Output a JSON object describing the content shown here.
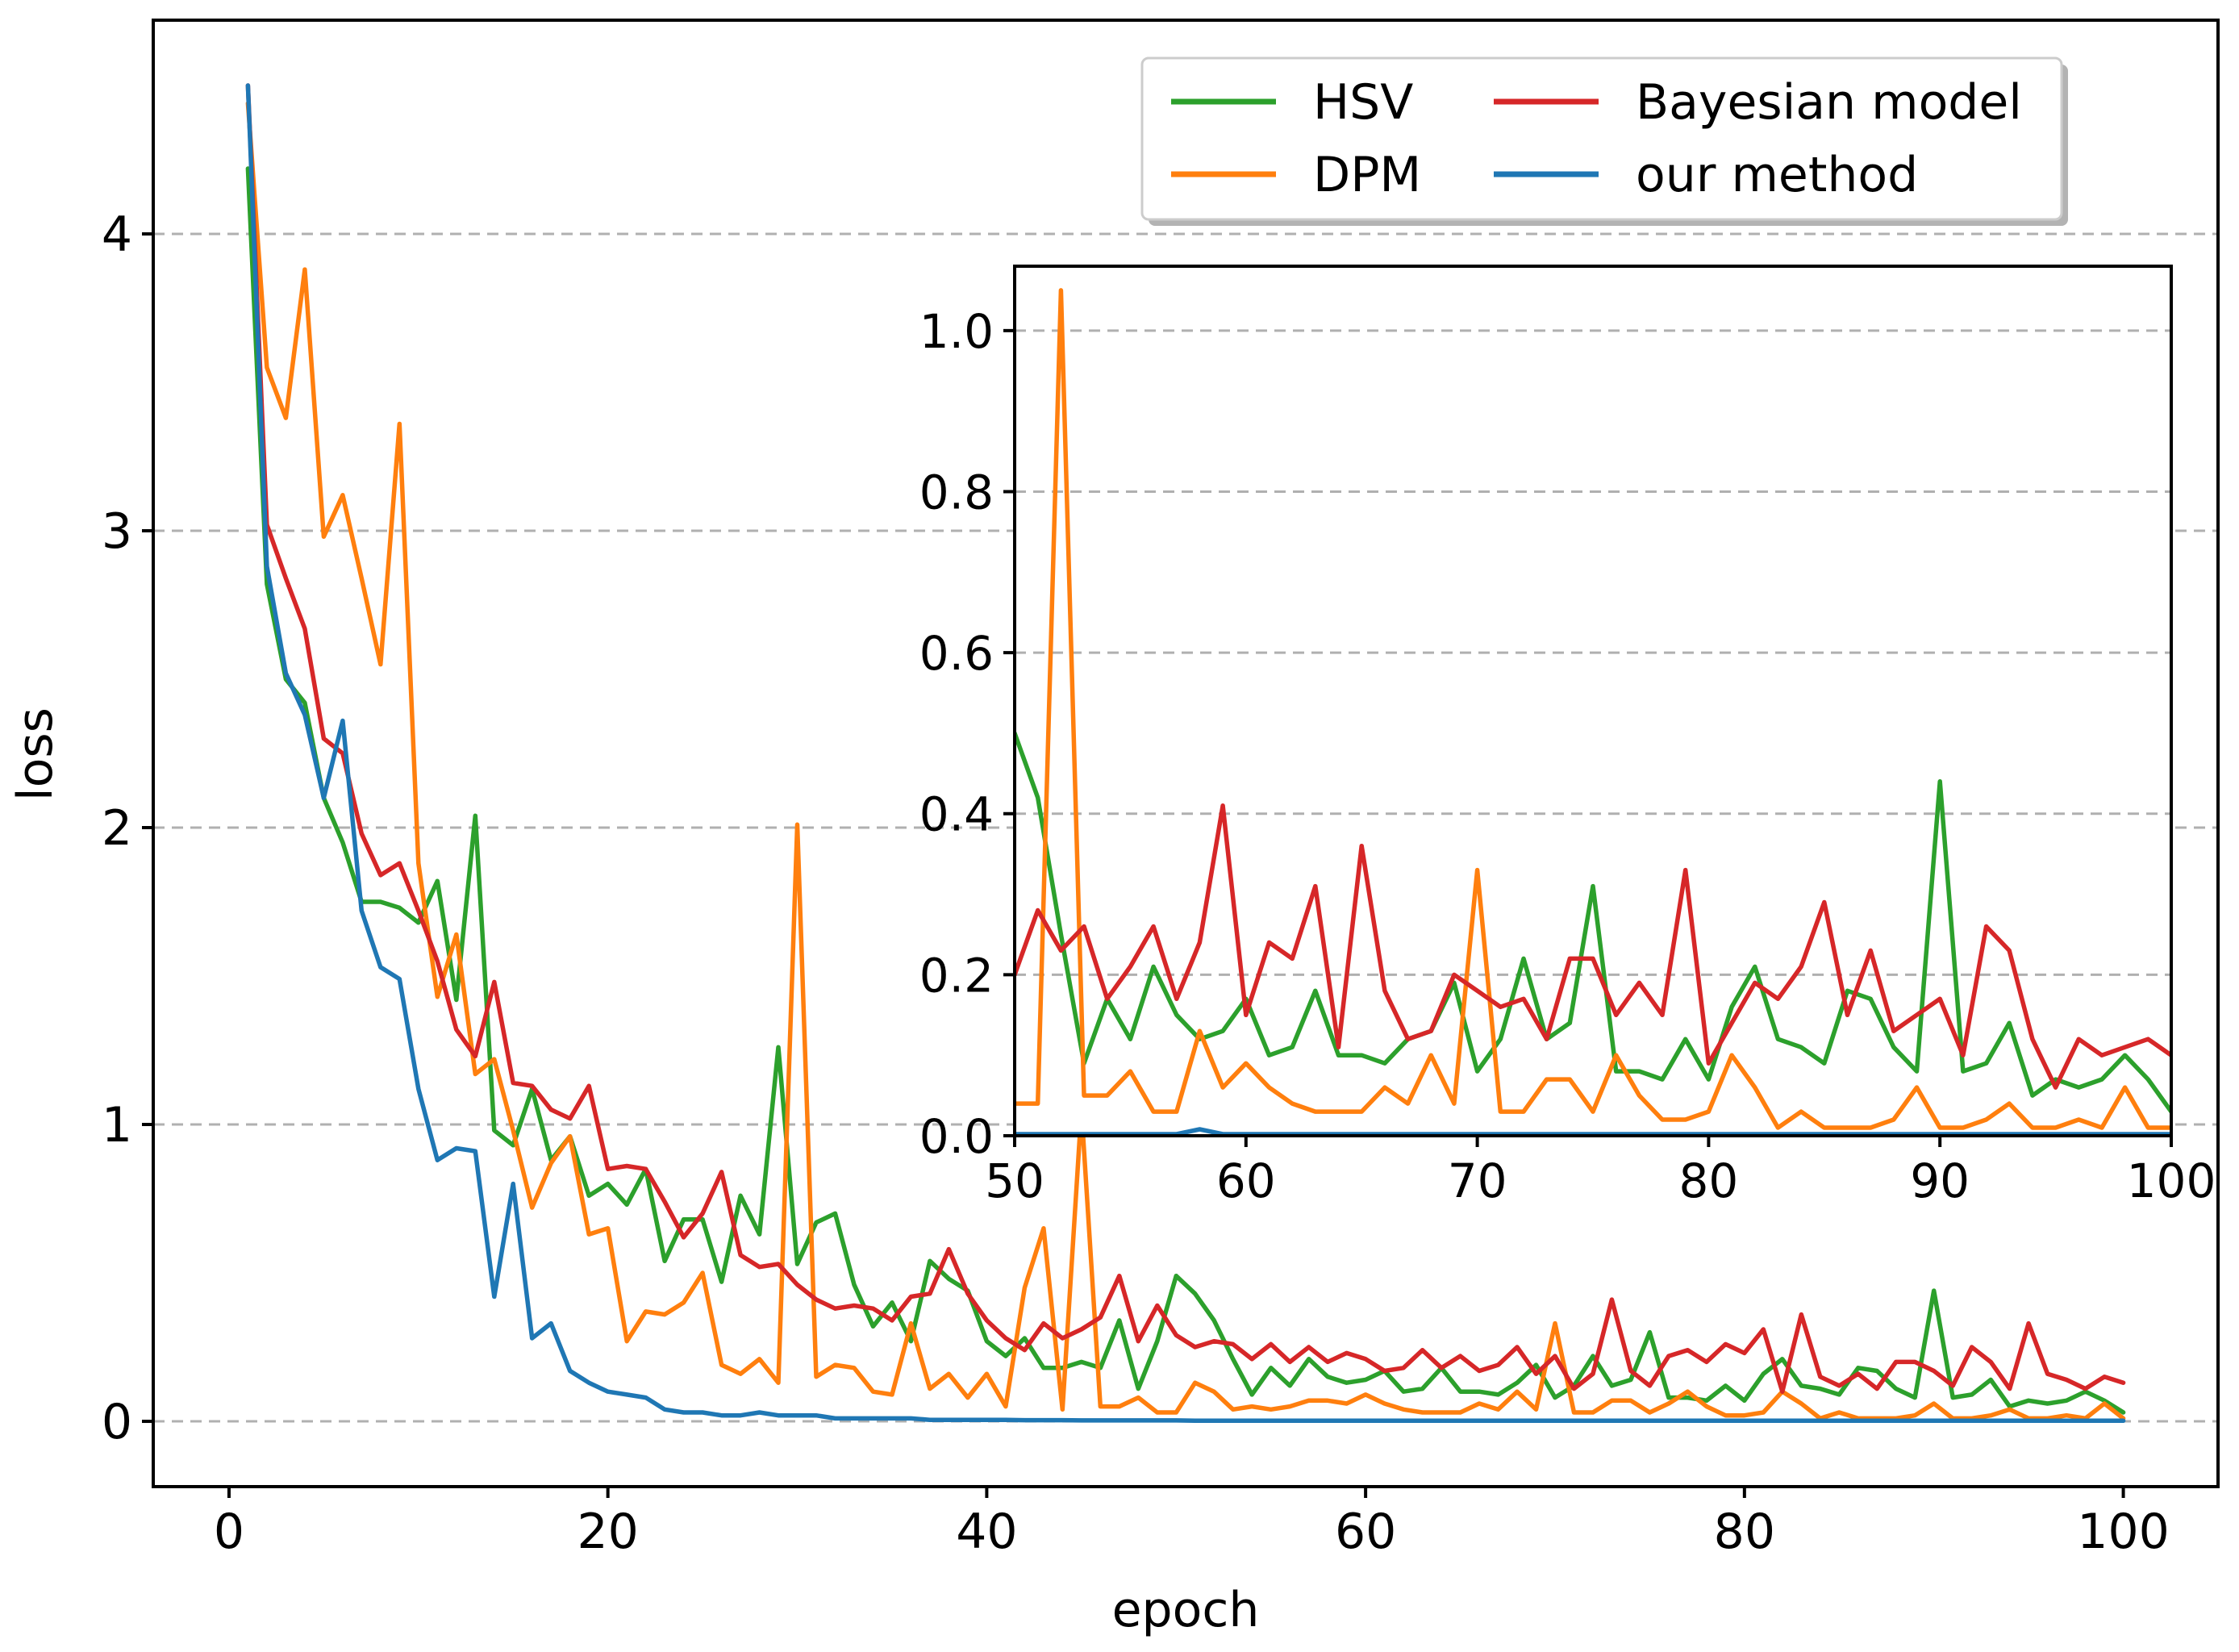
{
  "chart_data": {
    "type": "line",
    "title": "",
    "xlabel": "epoch",
    "ylabel": "loss",
    "xlim": [
      -4,
      105
    ],
    "ylim": [
      -0.22,
      4.72
    ],
    "xticks": [
      0,
      20,
      40,
      60,
      80,
      100
    ],
    "yticks": [
      0,
      1,
      2,
      3,
      4
    ],
    "grid": "horizontal dashed",
    "legend": {
      "placement": "top-right",
      "entries": [
        {
          "name": "HSV",
          "color": "#2ca02c"
        },
        {
          "name": "DPM",
          "color": "#ff7f0e"
        },
        {
          "name": "Bayesian model",
          "color": "#d62728"
        },
        {
          "name": "our method",
          "color": "#1f77b4"
        }
      ]
    },
    "x": [
      1,
      2,
      3,
      4,
      5,
      6,
      7,
      8,
      9,
      10,
      11,
      12,
      13,
      14,
      15,
      16,
      17,
      18,
      19,
      20,
      21,
      22,
      23,
      24,
      25,
      26,
      27,
      28,
      29,
      30,
      31,
      32,
      33,
      34,
      35,
      36,
      37,
      38,
      39,
      40,
      41,
      42,
      43,
      44,
      45,
      46,
      47,
      48,
      49,
      50,
      51,
      52,
      53,
      54,
      55,
      56,
      57,
      58,
      59,
      60,
      61,
      62,
      63,
      64,
      65,
      66,
      67,
      68,
      69,
      70,
      71,
      72,
      73,
      74,
      75,
      76,
      77,
      78,
      79,
      80,
      81,
      82,
      83,
      84,
      85,
      86,
      87,
      88,
      89,
      90,
      91,
      92,
      93,
      94,
      95,
      96,
      97,
      98,
      99,
      100
    ],
    "series": [
      {
        "name": "HSV",
        "color": "#2ca02c",
        "values": [
          4.22,
          2.82,
          2.5,
          2.42,
          2.1,
          1.95,
          1.75,
          1.75,
          1.73,
          1.68,
          1.82,
          1.42,
          2.04,
          0.98,
          0.93,
          1.12,
          0.88,
          0.96,
          0.76,
          0.8,
          0.73,
          0.85,
          0.54,
          0.68,
          0.68,
          0.47,
          0.76,
          0.63,
          1.26,
          0.53,
          0.67,
          0.7,
          0.46,
          0.32,
          0.4,
          0.27,
          0.54,
          0.48,
          0.44,
          0.27,
          0.22,
          0.28,
          0.18,
          0.18,
          0.2,
          0.18,
          0.34,
          0.11,
          0.27,
          0.49,
          0.43,
          0.34,
          0.21,
          0.09,
          0.18,
          0.12,
          0.21,
          0.15,
          0.13,
          0.14,
          0.17,
          0.1,
          0.11,
          0.18,
          0.1,
          0.1,
          0.09,
          0.13,
          0.19,
          0.08,
          0.12,
          0.22,
          0.12,
          0.14,
          0.3,
          0.08,
          0.08,
          0.07,
          0.12,
          0.07,
          0.16,
          0.21,
          0.12,
          0.11,
          0.09,
          0.18,
          0.17,
          0.11,
          0.08,
          0.44,
          0.08,
          0.09,
          0.14,
          0.05,
          0.07,
          0.06,
          0.07,
          0.1,
          0.07,
          0.03
        ]
      },
      {
        "name": "DPM",
        "color": "#ff7f0e",
        "values": [
          4.44,
          3.55,
          3.38,
          3.88,
          2.98,
          3.12,
          2.84,
          2.55,
          3.36,
          1.88,
          1.43,
          1.64,
          1.17,
          1.22,
          0.98,
          0.72,
          0.87,
          0.96,
          0.63,
          0.65,
          0.27,
          0.37,
          0.36,
          0.4,
          0.5,
          0.19,
          0.16,
          0.21,
          0.13,
          2.01,
          0.15,
          0.19,
          0.18,
          0.1,
          0.09,
          0.33,
          0.11,
          0.16,
          0.08,
          0.16,
          0.05,
          0.45,
          0.65,
          0.04,
          1.05,
          0.05,
          0.05,
          0.08,
          0.03,
          0.03,
          0.13,
          0.1,
          0.04,
          0.05,
          0.04,
          0.05,
          0.07,
          0.07,
          0.06,
          0.09,
          0.06,
          0.04,
          0.03,
          0.03,
          0.03,
          0.06,
          0.04,
          0.1,
          0.04,
          0.33,
          0.03,
          0.03,
          0.07,
          0.07,
          0.03,
          0.06,
          0.1,
          0.05,
          0.02,
          0.02,
          0.03,
          0.1,
          0.06,
          0.01,
          0.03,
          0.01,
          0.01,
          0.01,
          0.02,
          0.06,
          0.01,
          0.01,
          0.02,
          0.04,
          0.01,
          0.01,
          0.02,
          0.01,
          0.06,
          0.01
        ]
      },
      {
        "name": "Bayesian model",
        "color": "#d62728",
        "values": [
          4.5,
          3.02,
          2.84,
          2.67,
          2.3,
          2.25,
          1.98,
          1.84,
          1.88,
          1.72,
          1.55,
          1.32,
          1.23,
          1.48,
          1.14,
          1.13,
          1.05,
          1.02,
          1.13,
          0.85,
          0.86,
          0.85,
          0.74,
          0.62,
          0.7,
          0.84,
          0.56,
          0.52,
          0.53,
          0.46,
          0.41,
          0.38,
          0.39,
          0.38,
          0.34,
          0.42,
          0.43,
          0.58,
          0.43,
          0.34,
          0.28,
          0.24,
          0.33,
          0.28,
          0.31,
          0.35,
          0.49,
          0.27,
          0.39,
          0.29,
          0.25,
          0.27,
          0.26,
          0.21,
          0.26,
          0.2,
          0.25,
          0.2,
          0.23,
          0.21,
          0.17,
          0.18,
          0.24,
          0.18,
          0.22,
          0.17,
          0.19,
          0.25,
          0.16,
          0.22,
          0.11,
          0.16,
          0.41,
          0.17,
          0.12,
          0.22,
          0.24,
          0.2,
          0.26,
          0.23,
          0.31,
          0.1,
          0.36,
          0.15,
          0.12,
          0.16,
          0.11,
          0.2,
          0.2,
          0.17,
          0.12,
          0.25,
          0.2,
          0.11,
          0.33,
          0.16,
          0.14,
          0.11,
          0.15,
          0.13
        ]
      },
      {
        "name": "our method",
        "color": "#1f77b4",
        "values": [
          4.5,
          2.88,
          2.52,
          2.38,
          2.1,
          2.36,
          1.72,
          1.53,
          1.49,
          1.12,
          0.88,
          0.92,
          0.91,
          0.42,
          0.8,
          0.28,
          0.33,
          0.17,
          0.13,
          0.1,
          0.09,
          0.08,
          0.04,
          0.03,
          0.03,
          0.02,
          0.02,
          0.03,
          0.02,
          0.02,
          0.02,
          0.01,
          0.01,
          0.01,
          0.01,
          0.01,
          0.005,
          0.005,
          0.005,
          0.005,
          0.005,
          0.004,
          0.004,
          0.004,
          0.003,
          0.003,
          0.003,
          0.003,
          0.003,
          0.003,
          0.002,
          0.002,
          0.002,
          0.002,
          0.002,
          0.002,
          0.002,
          0.002,
          0.002,
          0.002,
          0.002,
          0.002,
          0.002,
          0.002,
          0.002,
          0.002,
          0.002,
          0.002,
          0.002,
          0.002,
          0.002,
          0.002,
          0.002,
          0.002,
          0.002,
          0.002,
          0.002,
          0.002,
          0.002,
          0.002,
          0.002,
          0.002,
          0.002,
          0.002,
          0.002,
          0.002,
          0.002,
          0.002,
          0.002,
          0.002,
          0.002,
          0.002,
          0.002,
          0.002,
          0.002,
          0.002,
          0.002,
          0.002,
          0.002,
          0.002
        ]
      }
    ],
    "inset": {
      "type": "line",
      "xlim": [
        50,
        100
      ],
      "ylim": [
        0,
        1.08
      ],
      "xticks": [
        50,
        60,
        70,
        80,
        90,
        100
      ],
      "yticks": [
        0.0,
        0.2,
        0.4,
        0.6,
        0.8,
        1.0
      ],
      "x": [
        50,
        51,
        52,
        53,
        54,
        55,
        56,
        57,
        58,
        59,
        60,
        61,
        62,
        63,
        64,
        65,
        66,
        67,
        68,
        69,
        70,
        71,
        72,
        73,
        74,
        75,
        76,
        77,
        78,
        79,
        80,
        81,
        82,
        83,
        84,
        85,
        86,
        87,
        88,
        89,
        90,
        91,
        92,
        93,
        94,
        95,
        96,
        97,
        98,
        99,
        100
      ],
      "series": [
        {
          "name": "HSV",
          "color": "#2ca02c",
          "values": [
            0.5,
            0.42,
            0.25,
            0.09,
            0.17,
            0.12,
            0.21,
            0.15,
            0.12,
            0.13,
            0.17,
            0.1,
            0.11,
            0.18,
            0.1,
            0.1,
            0.09,
            0.12,
            0.13,
            0.19,
            0.08,
            0.12,
            0.22,
            0.12,
            0.14,
            0.31,
            0.08,
            0.08,
            0.07,
            0.12,
            0.07,
            0.16,
            0.21,
            0.12,
            0.11,
            0.09,
            0.18,
            0.17,
            0.11,
            0.08,
            0.44,
            0.08,
            0.09,
            0.14,
            0.05,
            0.07,
            0.06,
            0.07,
            0.1,
            0.07,
            0.03
          ]
        },
        {
          "name": "DPM",
          "color": "#ff7f0e",
          "values": [
            0.04,
            0.04,
            1.05,
            0.05,
            0.05,
            0.08,
            0.03,
            0.03,
            0.13,
            0.06,
            0.09,
            0.06,
            0.04,
            0.03,
            0.03,
            0.03,
            0.06,
            0.04,
            0.1,
            0.04,
            0.33,
            0.03,
            0.03,
            0.07,
            0.07,
            0.03,
            0.1,
            0.05,
            0.02,
            0.02,
            0.03,
            0.1,
            0.06,
            0.01,
            0.03,
            0.01,
            0.01,
            0.01,
            0.02,
            0.06,
            0.01,
            0.01,
            0.02,
            0.04,
            0.01,
            0.01,
            0.02,
            0.01,
            0.06,
            0.01,
            0.01
          ]
        },
        {
          "name": "Bayesian model",
          "color": "#d62728",
          "values": [
            0.2,
            0.28,
            0.23,
            0.26,
            0.17,
            0.21,
            0.26,
            0.17,
            0.24,
            0.41,
            0.15,
            0.24,
            0.22,
            0.31,
            0.11,
            0.36,
            0.18,
            0.12,
            0.13,
            0.2,
            0.18,
            0.16,
            0.17,
            0.12,
            0.22,
            0.22,
            0.15,
            0.19,
            0.15,
            0.33,
            0.09,
            0.14,
            0.19,
            0.17,
            0.21,
            0.29,
            0.15,
            0.23,
            0.13,
            0.15,
            0.17,
            0.1,
            0.26,
            0.23,
            0.12,
            0.06,
            0.12,
            0.1,
            0.11,
            0.12,
            0.1
          ]
        },
        {
          "name": "our method",
          "color": "#1f77b4",
          "values": [
            0.002,
            0.002,
            0.002,
            0.002,
            0.002,
            0.002,
            0.002,
            0.002,
            0.008,
            0.002,
            0.002,
            0.002,
            0.002,
            0.002,
            0.002,
            0.002,
            0.002,
            0.002,
            0.002,
            0.002,
            0.002,
            0.002,
            0.002,
            0.002,
            0.002,
            0.002,
            0.002,
            0.002,
            0.002,
            0.002,
            0.002,
            0.002,
            0.002,
            0.002,
            0.002,
            0.002,
            0.002,
            0.002,
            0.002,
            0.002,
            0.002,
            0.002,
            0.002,
            0.002,
            0.002,
            0.002,
            0.002,
            0.002,
            0.002,
            0.002,
            0.002
          ]
        }
      ]
    }
  }
}
